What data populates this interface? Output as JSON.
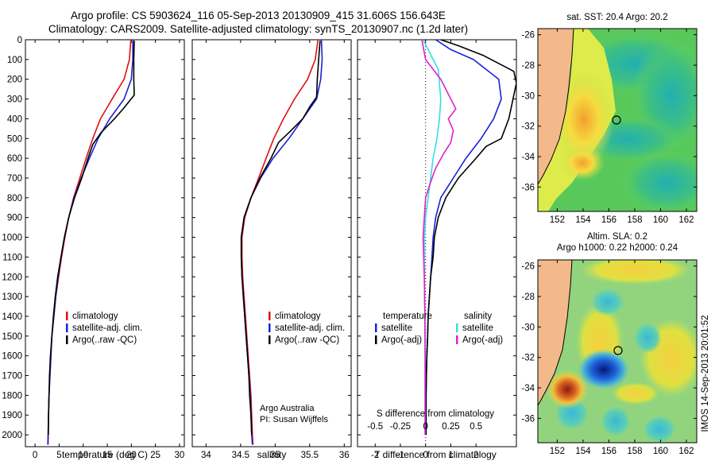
{
  "header": {
    "line1": "Argo profile: CS 5903624_116 05-Sep-2013 20130909_415 31.606S 156.643E",
    "line2": "Climatology: CARS2009. Satellite-adjusted climatology: synTS_20130907.nc (1.2d later)"
  },
  "colors": {
    "climatology": "#e01010",
    "satellite": "#1a22d0",
    "argo": "#000000",
    "sal_satellite": "#33e0e0",
    "sal_argo": "#e020d0",
    "land": "#f3b98a"
  },
  "chart_data": [
    {
      "id": "temperature",
      "type": "line",
      "xlabel": "temperature (deg C)",
      "ylabel": "",
      "xlim": [
        -2,
        31
      ],
      "ylim": [
        2060,
        0
      ],
      "xticks": [
        0,
        5,
        10,
        15,
        20,
        25,
        30
      ],
      "yticks": [
        0,
        100,
        200,
        300,
        400,
        500,
        600,
        700,
        800,
        900,
        1000,
        1100,
        1200,
        1300,
        1400,
        1500,
        1600,
        1700,
        1800,
        1900,
        2000
      ],
      "legend": [
        {
          "label": "climatology",
          "color": "#e01010"
        },
        {
          "label": "satellite-adj. clim.",
          "color": "#1a22d0"
        },
        {
          "label": "Argo(..raw -QC)",
          "color": "#000000"
        }
      ],
      "series": [
        {
          "name": "climatology",
          "color": "#e01010",
          "points": [
            [
              19.9,
              0
            ],
            [
              19.6,
              100
            ],
            [
              18.5,
              200
            ],
            [
              16.0,
              300
            ],
            [
              13.6,
              400
            ],
            [
              12.0,
              500
            ],
            [
              10.6,
              600
            ],
            [
              9.3,
              700
            ],
            [
              8.0,
              800
            ],
            [
              7.0,
              900
            ],
            [
              6.2,
              1000
            ],
            [
              5.5,
              1100
            ],
            [
              4.9,
              1200
            ],
            [
              4.3,
              1300
            ],
            [
              3.9,
              1400
            ],
            [
              3.5,
              1500
            ],
            [
              3.3,
              1600
            ],
            [
              3.1,
              1700
            ],
            [
              2.9,
              1800
            ],
            [
              2.8,
              1900
            ],
            [
              2.75,
              2000
            ],
            [
              2.7,
              2050
            ]
          ]
        },
        {
          "name": "satellite-adj. clim.",
          "color": "#1a22d0",
          "points": [
            [
              20.3,
              0
            ],
            [
              20.3,
              100
            ],
            [
              20.0,
              200
            ],
            [
              18.5,
              300
            ],
            [
              15.5,
              400
            ],
            [
              13.1,
              500
            ],
            [
              11.3,
              600
            ],
            [
              9.6,
              700
            ],
            [
              8.1,
              800
            ],
            [
              7.0,
              900
            ],
            [
              6.1,
              1000
            ],
            [
              5.4,
              1100
            ],
            [
              4.8,
              1200
            ],
            [
              4.3,
              1300
            ],
            [
              3.9,
              1400
            ],
            [
              3.5,
              1500
            ],
            [
              3.3,
              1600
            ],
            [
              3.1,
              1700
            ],
            [
              2.9,
              1800
            ],
            [
              2.8,
              1900
            ],
            [
              2.7,
              2000
            ],
            [
              2.65,
              2050
            ]
          ]
        },
        {
          "name": "Argo(..raw -QC)",
          "color": "#000000",
          "points": [
            [
              20.6,
              5
            ],
            [
              20.5,
              100
            ],
            [
              20.5,
              200
            ],
            [
              20.6,
              280
            ],
            [
              18.3,
              350
            ],
            [
              16.5,
              400
            ],
            [
              13.7,
              470
            ],
            [
              12.0,
              530
            ],
            [
              11.0,
              600
            ],
            [
              9.7,
              700
            ],
            [
              8.2,
              800
            ],
            [
              7.0,
              900
            ],
            [
              6.1,
              1000
            ],
            [
              5.4,
              1100
            ],
            [
              4.7,
              1200
            ],
            [
              4.2,
              1300
            ],
            [
              3.8,
              1400
            ],
            [
              3.5,
              1500
            ],
            [
              3.2,
              1600
            ],
            [
              3.0,
              1700
            ],
            [
              2.9,
              1800
            ],
            [
              2.8,
              1900
            ],
            [
              2.75,
              2000
            ]
          ]
        }
      ]
    },
    {
      "id": "salinity",
      "type": "line",
      "xlabel": "salinity",
      "ylabel": "",
      "xlim": [
        33.8,
        36.1
      ],
      "ylim": [
        2060,
        0
      ],
      "xticks": [
        34,
        34.5,
        35,
        35.5,
        36
      ],
      "legend": [
        {
          "label": "climatology",
          "color": "#e01010"
        },
        {
          "label": "satellite-adj. clim.",
          "color": "#1a22d0"
        },
        {
          "label": "Argo(..raw -QC)",
          "color": "#000000"
        }
      ],
      "annotations": [
        "Argo Australia",
        "PI: Susan Wijffels"
      ],
      "series": [
        {
          "name": "climatology",
          "color": "#e01010",
          "points": [
            [
              35.62,
              0
            ],
            [
              35.58,
              100
            ],
            [
              35.47,
              200
            ],
            [
              35.28,
              300
            ],
            [
              35.12,
              400
            ],
            [
              34.98,
              500
            ],
            [
              34.87,
              600
            ],
            [
              34.76,
              700
            ],
            [
              34.65,
              800
            ],
            [
              34.56,
              900
            ],
            [
              34.52,
              1000
            ],
            [
              34.52,
              1100
            ],
            [
              34.53,
              1200
            ],
            [
              34.55,
              1300
            ],
            [
              34.57,
              1400
            ],
            [
              34.59,
              1500
            ],
            [
              34.61,
              1600
            ],
            [
              34.63,
              1700
            ],
            [
              34.65,
              1800
            ],
            [
              34.66,
              1900
            ],
            [
              34.67,
              2000
            ],
            [
              34.68,
              2050
            ]
          ]
        },
        {
          "name": "satellite-adj. clim.",
          "color": "#1a22d0",
          "points": [
            [
              35.67,
              0
            ],
            [
              35.68,
              100
            ],
            [
              35.66,
              200
            ],
            [
              35.6,
              300
            ],
            [
              35.4,
              400
            ],
            [
              35.2,
              500
            ],
            [
              34.97,
              600
            ],
            [
              34.79,
              700
            ],
            [
              34.65,
              800
            ],
            [
              34.55,
              900
            ],
            [
              34.51,
              1000
            ],
            [
              34.51,
              1100
            ],
            [
              34.52,
              1200
            ],
            [
              34.54,
              1300
            ],
            [
              34.56,
              1400
            ],
            [
              34.58,
              1500
            ],
            [
              34.6,
              1600
            ],
            [
              34.62,
              1700
            ],
            [
              34.64,
              1800
            ],
            [
              34.65,
              1900
            ],
            [
              34.66,
              2000
            ],
            [
              34.67,
              2050
            ]
          ]
        },
        {
          "name": "Argo(..raw -QC)",
          "color": "#000000",
          "points": [
            [
              35.65,
              5
            ],
            [
              35.63,
              100
            ],
            [
              35.61,
              200
            ],
            [
              35.6,
              290
            ],
            [
              35.5,
              340
            ],
            [
              35.4,
              400
            ],
            [
              35.2,
              470
            ],
            [
              35.05,
              520
            ],
            [
              34.94,
              600
            ],
            [
              34.78,
              700
            ],
            [
              34.65,
              800
            ],
            [
              34.55,
              900
            ],
            [
              34.51,
              1000
            ],
            [
              34.51,
              1100
            ],
            [
              34.52,
              1200
            ],
            [
              34.54,
              1300
            ],
            [
              34.56,
              1400
            ],
            [
              34.58,
              1500
            ],
            [
              34.6,
              1600
            ],
            [
              34.62,
              1700
            ],
            [
              34.63,
              1800
            ],
            [
              34.65,
              1900
            ],
            [
              34.66,
              2000
            ]
          ]
        }
      ]
    },
    {
      "id": "difference",
      "type": "line",
      "xlabel": "T difference from climatology",
      "x2label": "S difference from climatology",
      "xlim": [
        -2.7,
        3.6
      ],
      "ylim": [
        2060,
        0
      ],
      "xticks": [
        -2,
        -1,
        0,
        1,
        2
      ],
      "x2ticks": [
        "-0.5",
        "-0.25",
        "0",
        "0.25",
        "0.5"
      ],
      "legend_temperature_title": "temperature",
      "legend_salinity_title": "salinity",
      "legend_temperature": [
        {
          "label": "satellite",
          "color": "#1a22d0"
        },
        {
          "label": "Argo(-adj)",
          "color": "#000000"
        }
      ],
      "legend_salinity": [
        {
          "label": "satellite",
          "color": "#33e0e0"
        },
        {
          "label": "Argo(-adj)",
          "color": "#e020d0"
        }
      ],
      "series": [
        {
          "name": "temperature satellite",
          "color": "#1a22d0",
          "points": [
            [
              0.4,
              0
            ],
            [
              1.0,
              50
            ],
            [
              1.9,
              100
            ],
            [
              2.9,
              200
            ],
            [
              3.0,
              300
            ],
            [
              2.7,
              400
            ],
            [
              2.2,
              500
            ],
            [
              1.6,
              600
            ],
            [
              1.1,
              700
            ],
            [
              0.6,
              800
            ],
            [
              0.4,
              900
            ],
            [
              0.3,
              1000
            ],
            [
              0.25,
              1100
            ],
            [
              0.2,
              1200
            ],
            [
              0.15,
              1300
            ],
            [
              0.1,
              1400
            ],
            [
              0.08,
              1500
            ],
            [
              0.05,
              1600
            ],
            [
              0.03,
              1700
            ],
            [
              0.02,
              1800
            ],
            [
              0.02,
              1900
            ],
            [
              0.02,
              2000
            ]
          ]
        },
        {
          "name": "temperature Argo(-adj)",
          "color": "#000000",
          "points": [
            [
              0.6,
              0
            ],
            [
              1.3,
              30
            ],
            [
              2.3,
              80
            ],
            [
              3.5,
              160
            ],
            [
              3.6,
              220
            ],
            [
              3.5,
              280
            ],
            [
              3.3,
              400
            ],
            [
              3.0,
              500
            ],
            [
              2.4,
              540
            ],
            [
              2.0,
              600
            ],
            [
              1.3,
              700
            ],
            [
              0.8,
              800
            ],
            [
              0.5,
              900
            ],
            [
              0.35,
              1000
            ],
            [
              0.3,
              1100
            ],
            [
              0.2,
              1200
            ],
            [
              0.15,
              1300
            ],
            [
              0.1,
              1400
            ],
            [
              0.08,
              1500
            ],
            [
              0.05,
              1600
            ],
            [
              0.03,
              1700
            ],
            [
              0.02,
              1800
            ],
            [
              0.02,
              1900
            ],
            [
              0.02,
              2000
            ]
          ]
        },
        {
          "name": "salinity satellite",
          "color": "#33e0e0",
          "points": [
            [
              -0.1,
              0
            ],
            [
              0.1,
              50
            ],
            [
              0.5,
              150
            ],
            [
              0.6,
              300
            ],
            [
              0.55,
              400
            ],
            [
              0.45,
              500
            ],
            [
              0.3,
              600
            ],
            [
              0.2,
              700
            ],
            [
              0.1,
              800
            ],
            [
              0.0,
              900
            ],
            [
              -0.05,
              1000
            ],
            [
              -0.05,
              1200
            ],
            [
              -0.03,
              1400
            ],
            [
              -0.02,
              1600
            ],
            [
              -0.02,
              1800
            ],
            [
              -0.02,
              2000
            ]
          ]
        },
        {
          "name": "salinity Argo(-adj)",
          "color": "#e020d0",
          "points": [
            [
              -0.15,
              0
            ],
            [
              0.0,
              100
            ],
            [
              0.6,
              200
            ],
            [
              1.0,
              300
            ],
            [
              1.2,
              350
            ],
            [
              0.9,
              400
            ],
            [
              1.1,
              460
            ],
            [
              1.0,
              520
            ],
            [
              0.7,
              580
            ],
            [
              0.4,
              650
            ],
            [
              0.2,
              720
            ],
            [
              0.0,
              800
            ],
            [
              -0.05,
              900
            ],
            [
              -0.1,
              1000
            ],
            [
              -0.05,
              1200
            ],
            [
              -0.03,
              1400
            ],
            [
              -0.02,
              1600
            ],
            [
              -0.02,
              1800
            ],
            [
              -0.02,
              2000
            ]
          ]
        }
      ]
    },
    {
      "id": "sst_map",
      "type": "heatmap",
      "title": "sat. SST: 20.4  Argo: 20.2",
      "xticks": [
        "152",
        "154",
        "156",
        "158",
        "160",
        "162"
      ],
      "yticks": [
        "-26",
        "-28",
        "-30",
        "-32",
        "-34",
        "-36"
      ],
      "argo_position": [
        156.6,
        -31.6
      ]
    },
    {
      "id": "sla_map",
      "type": "heatmap",
      "title_line1": "Altim. SLA: 0.2",
      "title_line2": "Argo h1000: 0.22  h2000: 0.24",
      "xticks": [
        "152",
        "154",
        "156",
        "158",
        "160",
        "162"
      ],
      "yticks": [
        "-26",
        "-28",
        "-30",
        "-32",
        "-34",
        "-36"
      ],
      "argo_position": [
        156.6,
        -31.6
      ]
    }
  ],
  "timestamp": "IMOS 14-Sep-2013 20:01:52"
}
